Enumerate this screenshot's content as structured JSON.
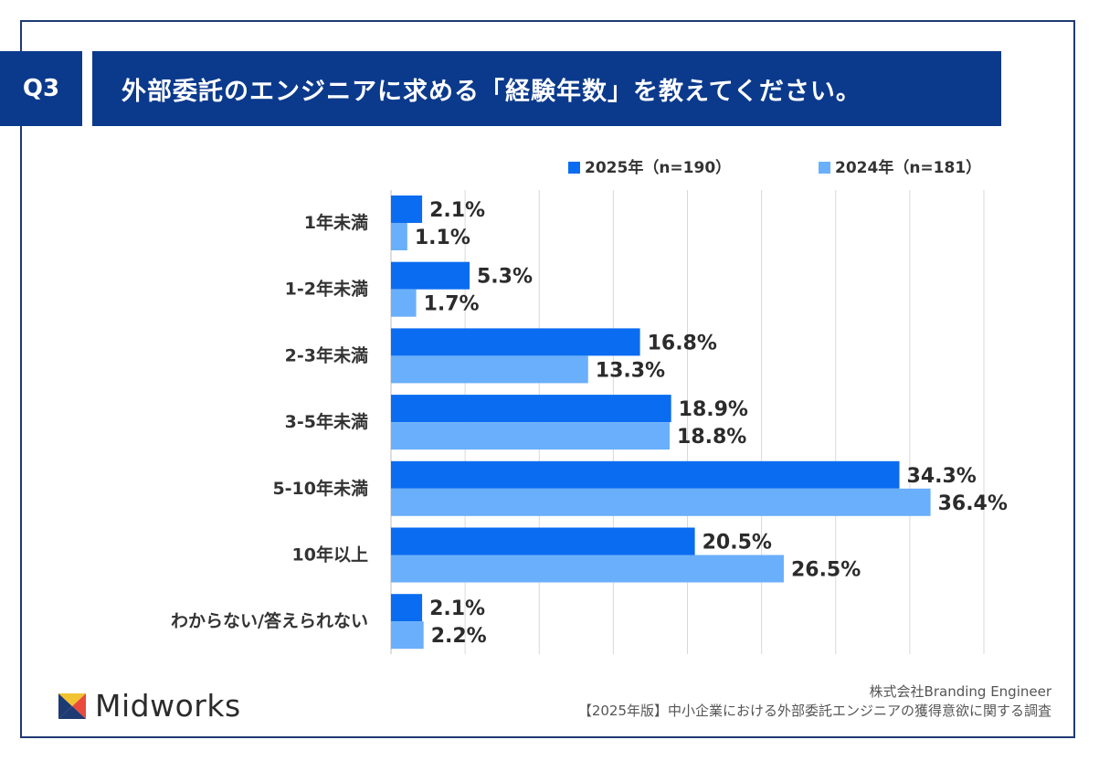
{
  "header": {
    "badge": "Q3",
    "title": "外部委託のエンジニアに求める「経験年数」を教えてください。"
  },
  "chart_data": {
    "type": "bar",
    "orientation": "horizontal",
    "categories": [
      "1年未満",
      "1-2年未満",
      "2-3年未満",
      "3-5年未満",
      "5-10年未満",
      "10年以上",
      "わからない/答えられない"
    ],
    "series": [
      {
        "name": "2025年（n=190）",
        "color": "#0a6cf0",
        "values": [
          2.1,
          5.3,
          16.8,
          18.9,
          34.3,
          20.5,
          2.1
        ],
        "labels": [
          "2.1%",
          "5.3%",
          "16.8%",
          "18.9%",
          "34.3%",
          "20.5%",
          "2.1%"
        ]
      },
      {
        "name": "2024年（n=181）",
        "color": "#6aaffb",
        "values": [
          1.1,
          1.7,
          13.3,
          18.8,
          36.4,
          26.5,
          2.2
        ],
        "labels": [
          "1.1%",
          "1.7%",
          "13.3%",
          "18.8%",
          "36.4%",
          "26.5%",
          "2.2%"
        ]
      }
    ],
    "xlim": [
      0,
      40
    ],
    "grid": true,
    "legend_position": "top-right"
  },
  "footer": {
    "logo_text": "Midworks",
    "company": "株式会社Branding Engineer",
    "survey": "【2025年版】中小企業における外部委託エンジニアの獲得意欲に関する調査"
  }
}
